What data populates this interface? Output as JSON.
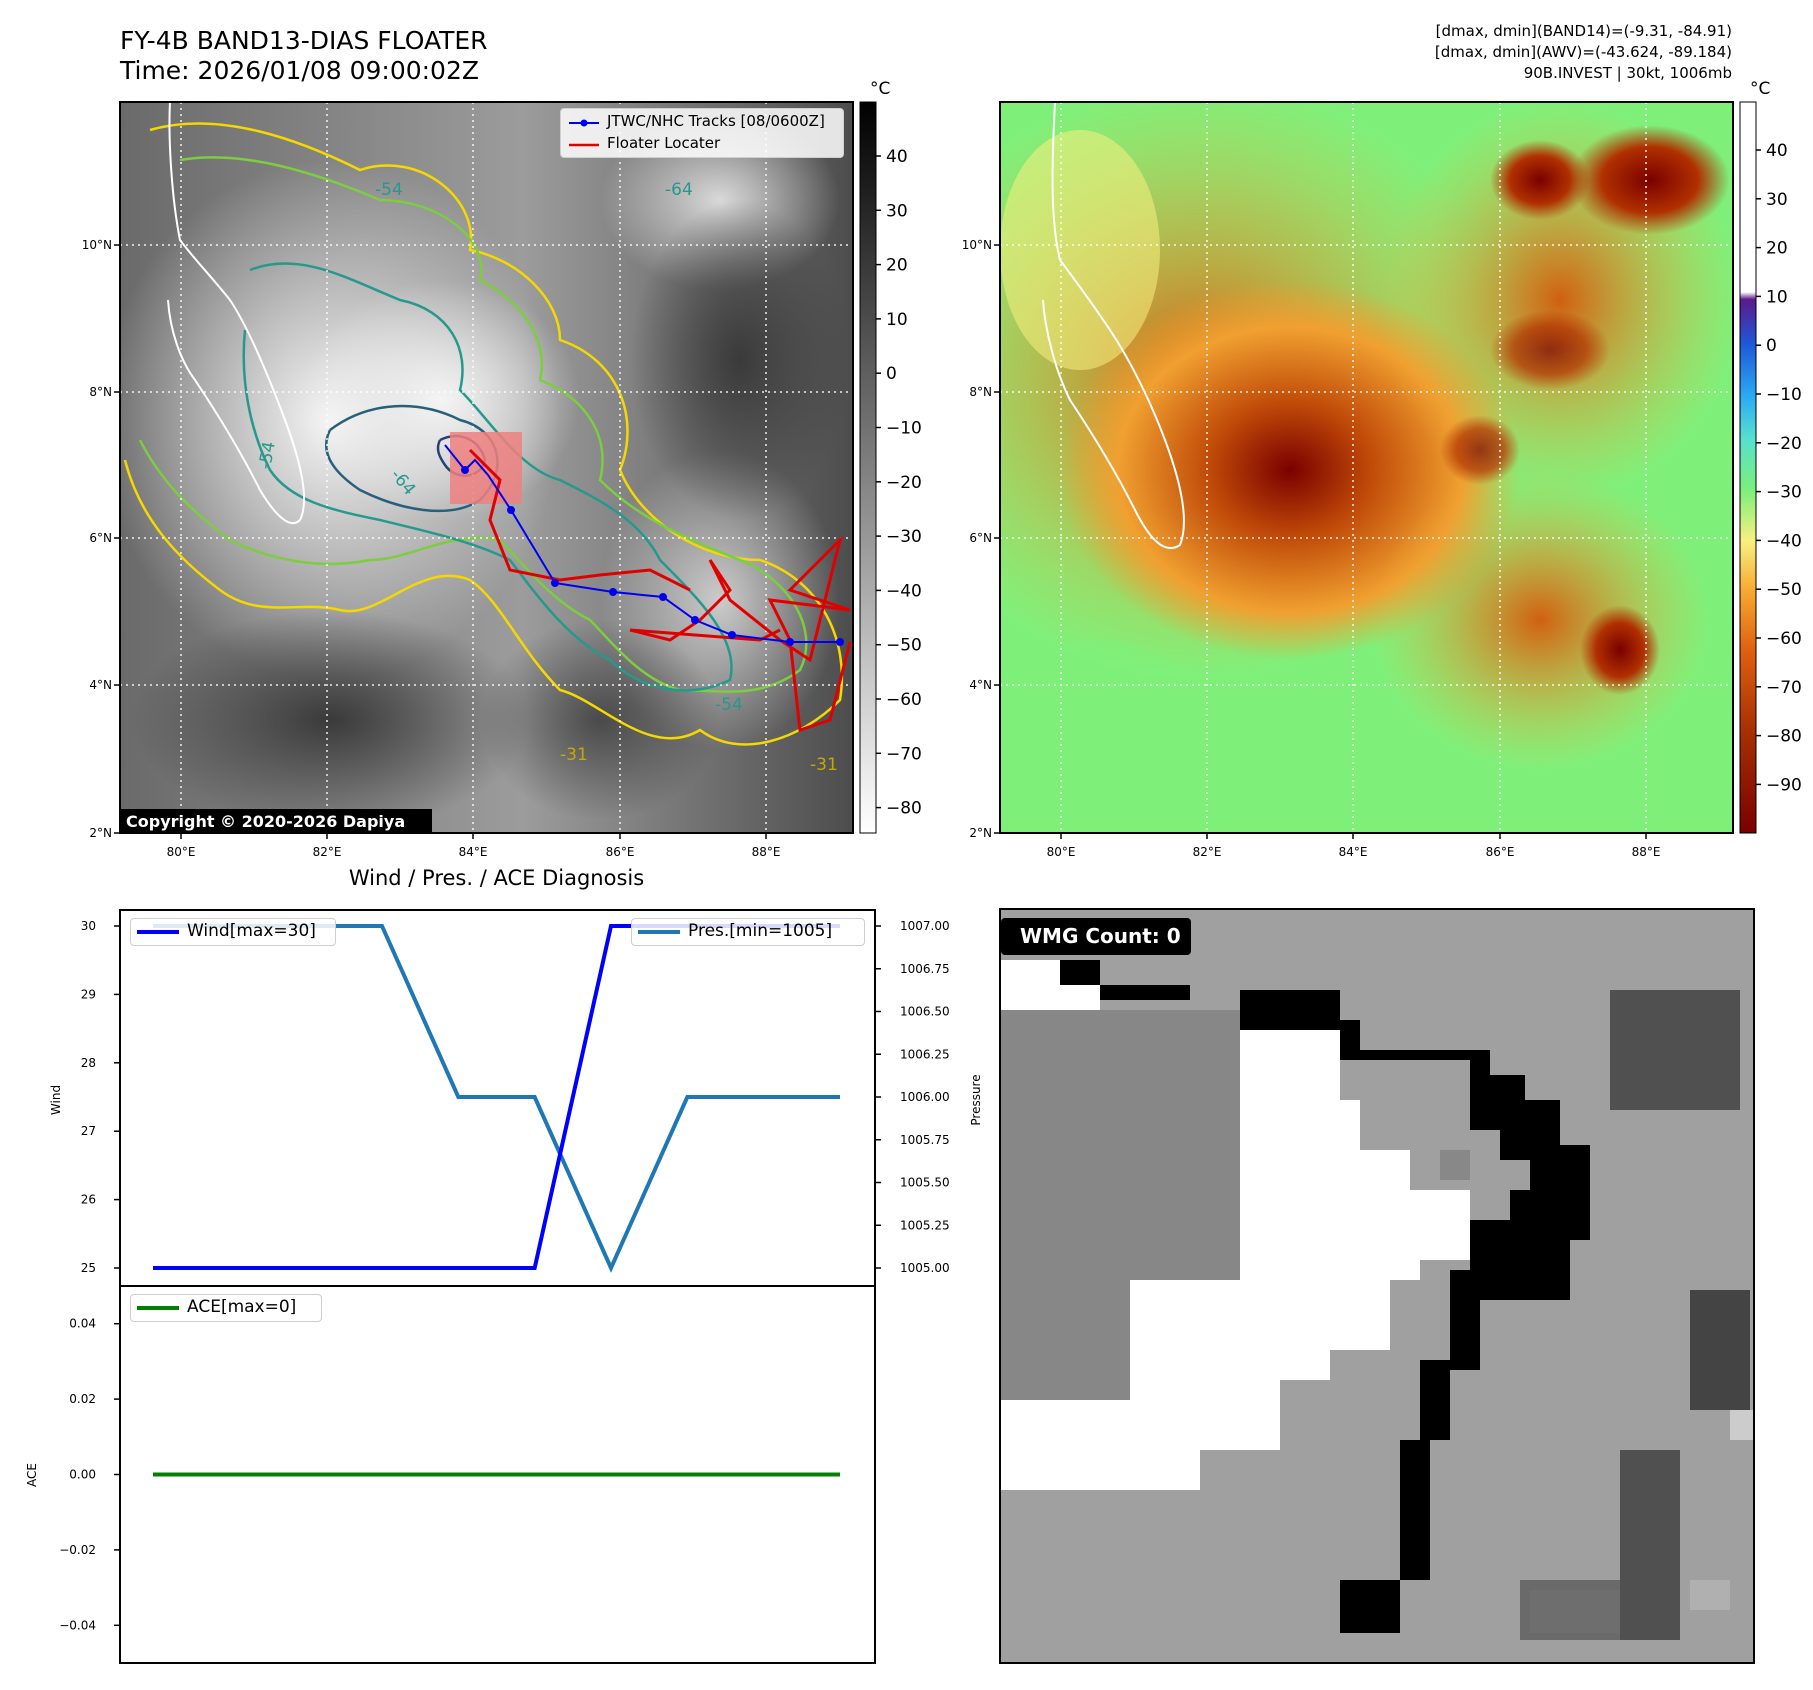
{
  "header": {
    "title_line1": "FY-4B BAND13-DIAS FLOATER",
    "title_line2": "Time: 2026/01/08 09:00:02Z",
    "right_line1": "[dmax, dmin](BAND14)=(-9.31, -84.91)",
    "right_line2": "[dmax, dmin](AWV)=(-43.624, -89.184)",
    "right_line3": "90B.INVEST | 30kt, 1006mb"
  },
  "map_left": {
    "legend": [
      "JTWC/NHC Tracks [08/0600Z]",
      "Floater Locater"
    ],
    "copyright": "Copyright © 2020-2026 Dapiya",
    "contour_labels": [
      "-54",
      "-64",
      "-31"
    ],
    "colorbar_unit": "°C",
    "colorbar_ticks": [
      "40",
      "30",
      "20",
      "10",
      "0",
      "−10",
      "−20",
      "−30",
      "−40",
      "−50",
      "−60",
      "−70",
      "−80"
    ],
    "lon_ticks": [
      "80°E",
      "82°E",
      "84°E",
      "86°E",
      "88°E"
    ],
    "lat_ticks": [
      "10°N",
      "8°N",
      "6°N",
      "4°N",
      "2°N"
    ]
  },
  "map_right": {
    "colorbar_unit": "°C",
    "colorbar_ticks": [
      "40",
      "30",
      "20",
      "10",
      "0",
      "−10",
      "−20",
      "−30",
      "−40",
      "−50",
      "−60",
      "−70",
      "−80",
      "−90"
    ],
    "lon_ticks": [
      "80°E",
      "82°E",
      "84°E",
      "86°E",
      "88°E"
    ],
    "lat_ticks": [
      "10°N",
      "8°N",
      "6°N",
      "4°N",
      "2°N"
    ]
  },
  "wmg": {
    "label": "WMG Count: 0"
  },
  "chart_data": [
    {
      "type": "line",
      "title": "Wind / Pres. / ACE Diagnosis",
      "ylabel": "Wind",
      "ylabel_right": "Pressure",
      "ylim": [
        25,
        30
      ],
      "ylim_right": [
        1005,
        1007
      ],
      "yticks": [
        "30",
        "29",
        "28",
        "27",
        "26",
        "25"
      ],
      "yticks_right": [
        "1007.00",
        "1006.75",
        "1006.50",
        "1006.25",
        "1006.00",
        "1005.75",
        "1005.50",
        "1005.25",
        "1005.00"
      ],
      "x": [
        0,
        1,
        2,
        3,
        4,
        5,
        6,
        7,
        8,
        9
      ],
      "series": [
        {
          "name": "Wind[max=30]",
          "color": "#0000ff",
          "values": [
            25,
            25,
            25,
            25,
            25,
            25,
            30,
            30,
            30,
            30
          ]
        },
        {
          "name": "Pres.[min=1005]",
          "color": "#1f77b4",
          "axis": "right",
          "values": [
            1007,
            1007,
            1007,
            1007,
            1006,
            1006,
            1005,
            1006,
            1006,
            1006
          ]
        }
      ]
    },
    {
      "type": "line",
      "ylabel": "ACE",
      "ylim": [
        -0.05,
        0.05
      ],
      "yticks": [
        "0.04",
        "0.02",
        "0.00",
        "−0.02",
        "−0.04"
      ],
      "x": [
        0,
        1,
        2,
        3,
        4,
        5,
        6,
        7,
        8,
        9
      ],
      "series": [
        {
          "name": "ACE[max=0]",
          "color": "#008000",
          "values": [
            0,
            0,
            0,
            0,
            0,
            0,
            0,
            0,
            0,
            0
          ]
        }
      ]
    }
  ]
}
